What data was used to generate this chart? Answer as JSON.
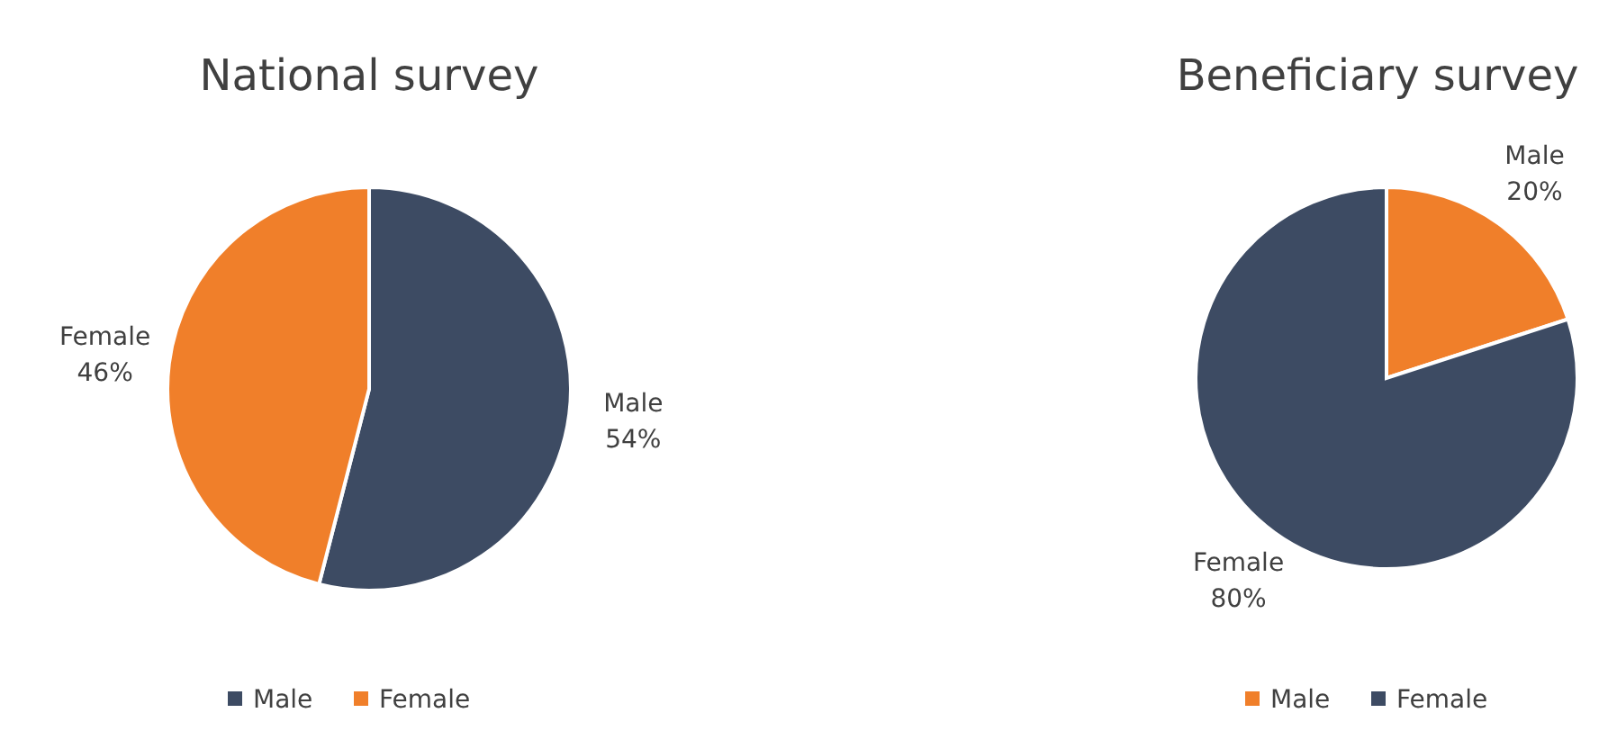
{
  "chart_data": [
    {
      "type": "pie",
      "title": "National survey",
      "categories": [
        "Male",
        "Female"
      ],
      "values": [
        54,
        46
      ],
      "colors": [
        "#3d4b63",
        "#f07f2a"
      ],
      "value_labels": [
        "54%",
        "46%"
      ],
      "legend": "bottom"
    },
    {
      "type": "pie",
      "title": "Beneficiary survey",
      "categories": [
        "Male",
        "Female"
      ],
      "values": [
        20,
        80
      ],
      "colors": [
        "#f07f2a",
        "#3d4b63"
      ],
      "value_labels": [
        "20%",
        "80%"
      ],
      "legend": "bottom"
    }
  ]
}
